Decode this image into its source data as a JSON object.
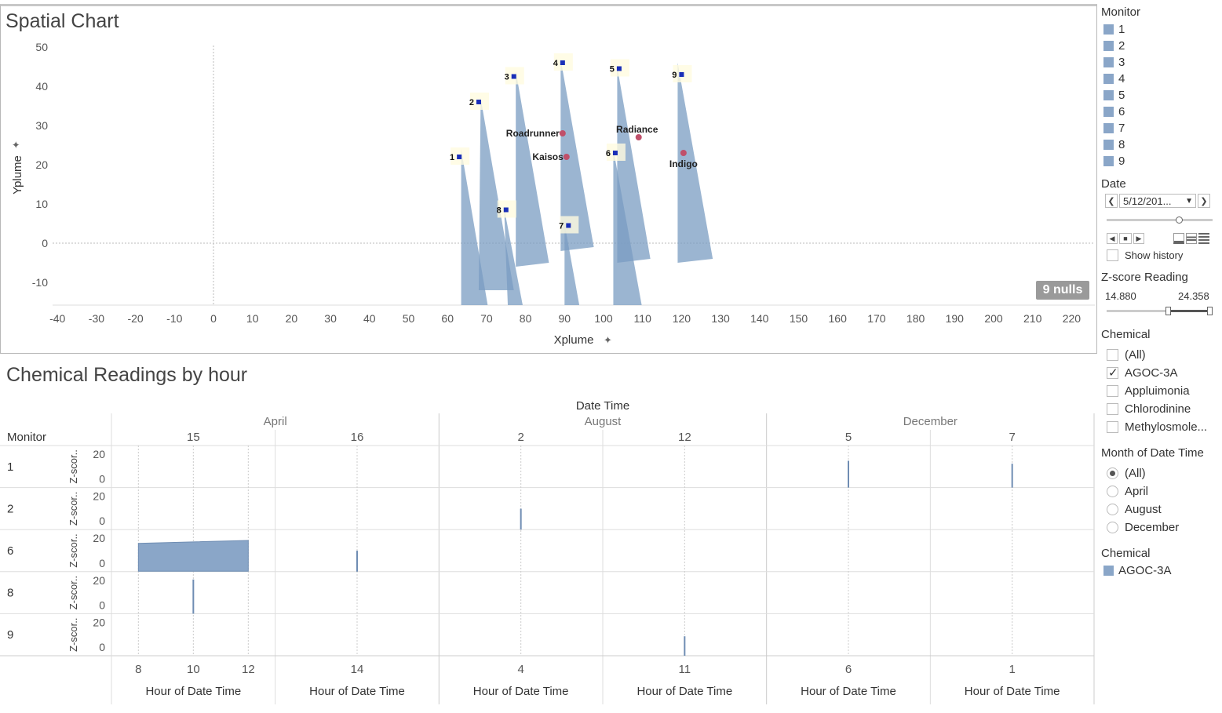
{
  "spatial": {
    "title": "Spatial Chart",
    "x_axis_label": "Xplume",
    "y_axis_label": "Yplume",
    "x_ticks": [
      -40,
      -30,
      -20,
      -10,
      0,
      10,
      20,
      30,
      40,
      50,
      60,
      70,
      80,
      90,
      100,
      110,
      120,
      130,
      140,
      150,
      160,
      170,
      180,
      190,
      200,
      210,
      220
    ],
    "y_ticks": [
      50,
      40,
      30,
      20,
      10,
      0,
      -10
    ],
    "nulls_label": "9 nulls",
    "monitors": [
      {
        "label": "1",
        "x": 62,
        "y": 22
      },
      {
        "label": "2",
        "x": 67,
        "y": 36
      },
      {
        "label": "3",
        "x": 76,
        "y": 42.5
      },
      {
        "label": "4",
        "x": 88.5,
        "y": 46
      },
      {
        "label": "5",
        "x": 103,
        "y": 44.5
      },
      {
        "label": "6",
        "x": 102,
        "y": 23
      },
      {
        "label": "7",
        "x": 90,
        "y": 4.5
      },
      {
        "label": "8",
        "x": 74,
        "y": 8.5
      },
      {
        "label": "9",
        "x": 119,
        "y": 43
      }
    ],
    "factories": [
      {
        "label": "Roadrunner",
        "x": 89.5,
        "y": 28
      },
      {
        "label": "Kaisos",
        "x": 90.5,
        "y": 22
      },
      {
        "label": "Radiance",
        "x": 109,
        "y": 27
      },
      {
        "label": "Indigo",
        "x": 120.5,
        "y": 23
      }
    ],
    "plumes": [
      {
        "monitor": "1",
        "points": [
          [
            63.5,
            24
          ],
          [
            70.5,
            -17
          ],
          [
            63.5,
            -17
          ]
        ]
      },
      {
        "monitor": "2",
        "points": [
          [
            68.5,
            37
          ],
          [
            77,
            -12
          ],
          [
            68,
            -12
          ]
        ]
      },
      {
        "monitor": "3",
        "points": [
          [
            77.5,
            44
          ],
          [
            86,
            -5
          ],
          [
            77.5,
            -6
          ]
        ]
      },
      {
        "monitor": "4",
        "points": [
          [
            89,
            47
          ],
          [
            97.5,
            -1
          ],
          [
            89,
            -2
          ]
        ]
      },
      {
        "monitor": "5",
        "points": [
          [
            103.5,
            45
          ],
          [
            112,
            -4
          ],
          [
            103.5,
            -5
          ]
        ]
      },
      {
        "monitor": "6",
        "points": [
          [
            102.5,
            24
          ],
          [
            110,
            -17
          ],
          [
            102.5,
            -17
          ]
        ]
      },
      {
        "monitor": "7",
        "points": [
          [
            90,
            5
          ],
          [
            94,
            -17
          ],
          [
            90,
            -17
          ]
        ]
      },
      {
        "monitor": "8",
        "points": [
          [
            74.5,
            9
          ],
          [
            79.5,
            -17
          ],
          [
            75.5,
            -17
          ]
        ]
      },
      {
        "monitor": "9",
        "points": [
          [
            119,
            46
          ],
          [
            128,
            -4
          ],
          [
            119,
            -5
          ]
        ]
      }
    ]
  },
  "hourly": {
    "title": "Chemical Readings by hour",
    "date_time_header": "Date Time",
    "monitor_header": "Monitor",
    "row_axis_label": "Z-scor..",
    "y_ticks": [
      "20",
      "0"
    ],
    "months": [
      {
        "label": "April",
        "days": [
          {
            "label": "15",
            "hours": [
              "8",
              "10",
              "12"
            ]
          },
          {
            "label": "16",
            "hours": [
              "14"
            ]
          }
        ]
      },
      {
        "label": "August",
        "days": [
          {
            "label": "2",
            "hours": [
              "4"
            ]
          },
          {
            "label": "12",
            "hours": [
              "11"
            ]
          }
        ]
      },
      {
        "label": "December",
        "days": [
          {
            "label": "5",
            "hours": [
              "6"
            ]
          },
          {
            "label": "7",
            "hours": [
              "1"
            ]
          }
        ]
      }
    ],
    "x_axis_label": "Hour of Date Time",
    "rows": [
      "1",
      "2",
      "6",
      "8",
      "9"
    ],
    "marks": [
      {
        "row": "1",
        "col": 4,
        "value": 15
      },
      {
        "row": "1",
        "col": 5,
        "value": 13
      },
      {
        "row": "2",
        "col": 2,
        "value": 11
      },
      {
        "row": "6",
        "col": 1,
        "value": 11
      },
      {
        "row": "6",
        "col": 0,
        "type": "area",
        "from_hour": 8,
        "to_hour": 12,
        "value_start": 16,
        "value_end": 18
      },
      {
        "row": "8",
        "col": 0,
        "value": 20,
        "hour": 10
      },
      {
        "row": "9",
        "col": 3,
        "value": 10
      }
    ]
  },
  "sidebar": {
    "monitor_title": "Monitor",
    "monitor_items": [
      "1",
      "2",
      "3",
      "4",
      "5",
      "6",
      "7",
      "8",
      "9"
    ],
    "date_title": "Date",
    "date_value": "5/12/201...",
    "show_history": "Show history",
    "zscore_title": "Z-score Reading",
    "zscore_min": "14.880",
    "zscore_max": "24.358",
    "chemical_title": "Chemical",
    "chemical_items": [
      {
        "label": "(All)",
        "checked": false
      },
      {
        "label": "AGOC-3A",
        "checked": true
      },
      {
        "label": "Appluimonia",
        "checked": false
      },
      {
        "label": "Chlorodinine",
        "checked": false
      },
      {
        "label": "Methylosmole...",
        "checked": false
      }
    ],
    "month_title": "Month of Date Time",
    "month_items": [
      {
        "label": "(All)",
        "checked": true
      },
      {
        "label": "April",
        "checked": false
      },
      {
        "label": "August",
        "checked": false
      },
      {
        "label": "December",
        "checked": false
      }
    ],
    "chemical_legend_title": "Chemical",
    "chemical_legend_item": "AGOC-3A",
    "colors": {
      "mark": "#8aa6c8",
      "plume": "#7a9cc2",
      "factory": "#c0506a",
      "monitor_marker": "#1a2fb8"
    }
  }
}
